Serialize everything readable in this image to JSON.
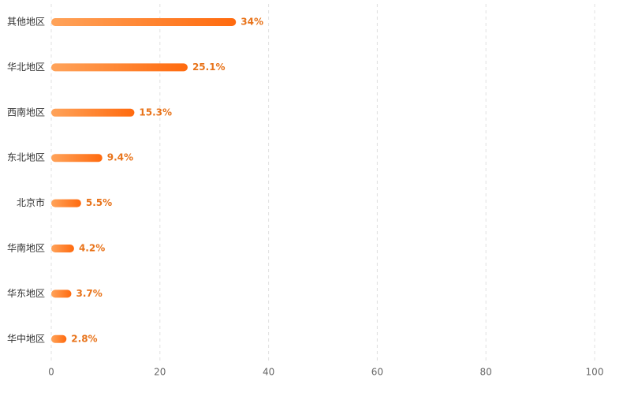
{
  "chart_data": {
    "type": "bar",
    "orientation": "horizontal",
    "categories": [
      "其他地区",
      "华北地区",
      "西南地区",
      "东北地区",
      "北京市",
      "华南地区",
      "华东地区",
      "华中地区"
    ],
    "values": [
      34,
      25.1,
      15.3,
      9.4,
      5.5,
      4.2,
      3.7,
      2.8
    ],
    "value_labels": [
      "34%",
      "25.1%",
      "15.3%",
      "9.4%",
      "5.5%",
      "4.2%",
      "3.7%",
      "2.8%"
    ],
    "gradient": [
      "#ffa35a",
      "#ff6a0e"
    ],
    "label_color": "#e8731a",
    "xlim": [
      0,
      100
    ],
    "xticks": [
      0,
      20,
      40,
      60,
      80,
      100
    ],
    "grid": true
  }
}
